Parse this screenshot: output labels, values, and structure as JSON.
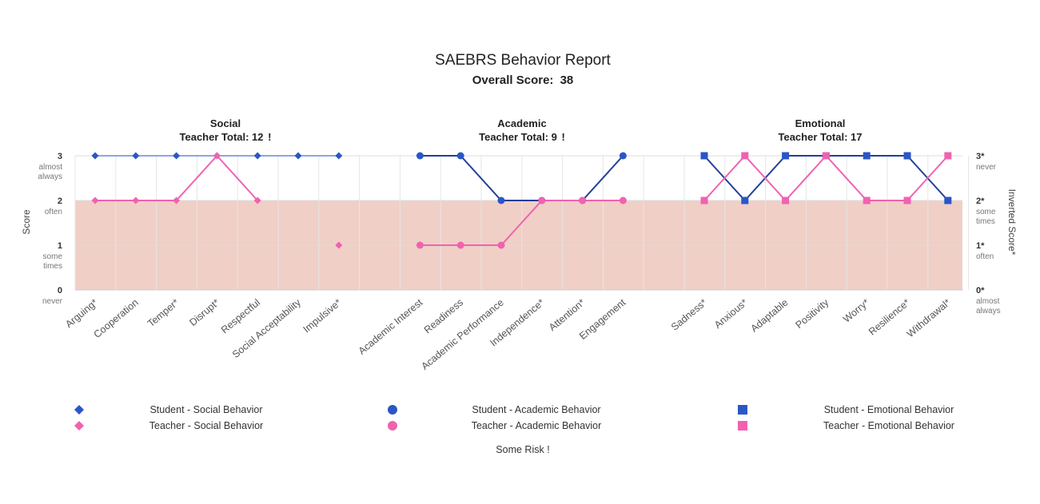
{
  "header": {
    "title": "SAEBRS Behavior Report",
    "overall_label": "Overall Score:",
    "overall_value": "38"
  },
  "groups": [
    {
      "name": "Social",
      "total_label": "Teacher Total: 12",
      "flag": "!"
    },
    {
      "name": "Academic",
      "total_label": "Teacher Total: 9",
      "flag": "!"
    },
    {
      "name": "Emotional",
      "total_label": "Teacher Total: 17",
      "flag": ""
    }
  ],
  "axes": {
    "left_title": "Score",
    "right_title": "Inverted Score*",
    "left_ticks": [
      {
        "value": 0,
        "label": "0",
        "sub": [
          "never"
        ]
      },
      {
        "value": 1,
        "label": "1",
        "sub": [
          "some",
          "times"
        ]
      },
      {
        "value": 2,
        "label": "2",
        "sub": [
          "often"
        ]
      },
      {
        "value": 3,
        "label": "3",
        "sub": [
          "almost",
          "always"
        ]
      }
    ],
    "right_ticks": [
      {
        "value": 0,
        "label": "0*",
        "sub": [
          "almost",
          "always"
        ]
      },
      {
        "value": 1,
        "label": "1*",
        "sub": [
          "often"
        ]
      },
      {
        "value": 2,
        "label": "2*",
        "sub": [
          "some",
          "times"
        ]
      },
      {
        "value": 3,
        "label": "3*",
        "sub": [
          "never"
        ]
      }
    ]
  },
  "legend": {
    "items": [
      {
        "label": "Student - Social Behavior",
        "shape": "diamond",
        "color": "#2a56c6"
      },
      {
        "label": "Teacher - Social Behavior",
        "shape": "diamond",
        "color": "#f062b0"
      },
      {
        "label": "Student - Academic Behavior",
        "shape": "circle",
        "color": "#2a56c6"
      },
      {
        "label": "Teacher - Academic Behavior",
        "shape": "circle",
        "color": "#f062b0"
      },
      {
        "label": "Student - Emotional Behavior",
        "shape": "square",
        "color": "#2a56c6"
      },
      {
        "label": "Teacher - Emotional Behavior",
        "shape": "square",
        "color": "#f062b0"
      }
    ],
    "risk_label": "Some Risk !"
  },
  "colors": {
    "student": "#2a56c6",
    "student_line": "#6a86d8",
    "student_line_dark": "#233f95",
    "teacher": "#f062b0",
    "risk_band": "#f0cfc6",
    "grid": "#e6e6e6"
  },
  "chart_data": {
    "type": "line",
    "ylim": [
      0,
      3
    ],
    "risk_band": [
      0,
      2
    ],
    "categories": [
      "Arguing*",
      "Cooperation",
      "Temper*",
      "Disrupt*",
      "Respectful",
      "Social Acceptability",
      "Impulsive*",
      "",
      "Academic Interest",
      "Readiness",
      "Academic Performance",
      "Independence*",
      "Attention*",
      "Engagement",
      "",
      "Sadness*",
      "Anxious*",
      "Adaptable",
      "Positivity",
      "Worry*",
      "Resilience*",
      "Withdrawal*"
    ],
    "series": [
      {
        "name": "Student - Social Behavior",
        "marker": "diamond",
        "values": [
          3,
          3,
          3,
          3,
          3,
          3,
          3,
          null,
          null,
          null,
          null,
          null,
          null,
          null,
          null,
          null,
          null,
          null,
          null,
          null,
          null,
          null
        ]
      },
      {
        "name": "Teacher - Social Behavior",
        "marker": "diamond",
        "values": [
          2,
          2,
          2,
          3,
          2,
          null,
          1,
          null,
          null,
          null,
          null,
          null,
          null,
          null,
          null,
          null,
          null,
          null,
          null,
          null,
          null,
          null
        ]
      },
      {
        "name": "Student - Academic Behavior",
        "marker": "circle",
        "values": [
          null,
          null,
          null,
          null,
          null,
          null,
          null,
          null,
          3,
          3,
          2,
          2,
          2,
          3,
          null,
          null,
          null,
          null,
          null,
          null,
          null,
          null
        ]
      },
      {
        "name": "Teacher - Academic Behavior",
        "marker": "circle",
        "values": [
          null,
          null,
          null,
          null,
          null,
          null,
          null,
          null,
          1,
          1,
          1,
          2,
          2,
          2,
          null,
          null,
          null,
          null,
          null,
          null,
          null,
          null
        ]
      },
      {
        "name": "Student - Emotional Behavior",
        "marker": "square",
        "values": [
          null,
          null,
          null,
          null,
          null,
          null,
          null,
          null,
          null,
          null,
          null,
          null,
          null,
          null,
          null,
          3,
          2,
          3,
          3,
          3,
          3,
          2
        ]
      },
      {
        "name": "Teacher - Emotional Behavior",
        "marker": "square",
        "values": [
          null,
          null,
          null,
          null,
          null,
          null,
          null,
          null,
          null,
          null,
          null,
          null,
          null,
          null,
          null,
          2,
          3,
          2,
          3,
          2,
          2,
          3
        ]
      }
    ]
  }
}
